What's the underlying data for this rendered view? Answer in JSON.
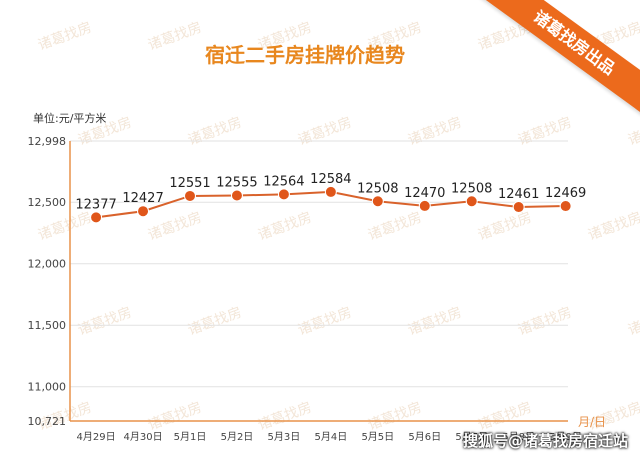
{
  "chart_data": {
    "type": "line",
    "title": "宿迁二手房挂牌价趋势",
    "unit_label": "单位:元/平方米",
    "xlabel": "月/日",
    "categories": [
      "4月29日",
      "4月30日",
      "5月1日",
      "5月2日",
      "5月3日",
      "5月4日",
      "5月5日",
      "5月6日",
      "5月7日",
      "5月8日",
      "5月9日"
    ],
    "values": [
      12377,
      12427,
      12551,
      12555,
      12564,
      12584,
      12508,
      12470,
      12508,
      12461,
      12469
    ],
    "ylim": [
      10721,
      12998
    ],
    "yticks": [
      10721,
      11000,
      11500,
      12000,
      12500,
      12998
    ],
    "ytick_labels": [
      "10,721",
      "11,000",
      "11,500",
      "12,000",
      "12,500",
      "12,998"
    ],
    "grid": true,
    "colors": {
      "line": "#d9622b",
      "point": "#e0561a",
      "title": "#e8871e",
      "axis": "#e8924a",
      "grid": "#e2e2e2"
    }
  },
  "ribbon": {
    "text": "诸葛找房出品"
  },
  "watermark": {
    "text": "诸葛找房"
  },
  "credit": {
    "text": "搜狐号@诸葛找房宿迁站"
  }
}
